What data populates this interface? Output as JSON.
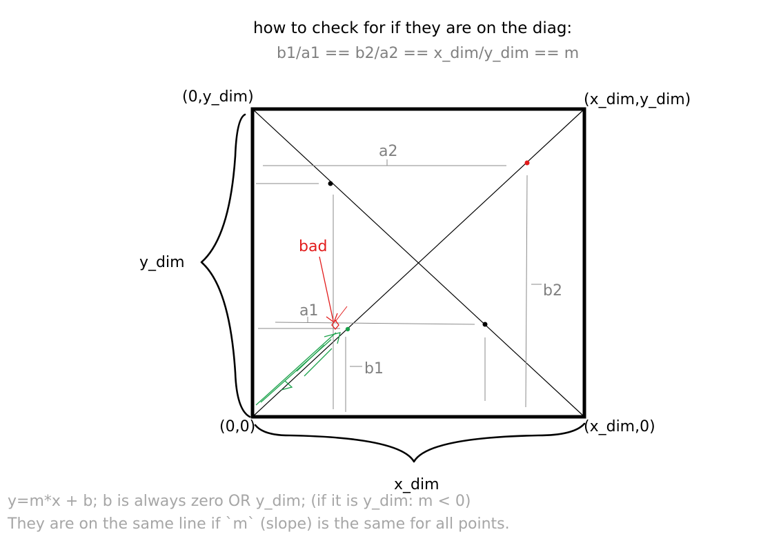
{
  "title": "how to check for if they are on the diag:",
  "formula": "b1/a1 == b2/a2 == x_dim/y_dim == m",
  "corners": {
    "top_left": "(0,y_dim)",
    "top_right": "(x_dim,y_dim)",
    "bottom_left": "(0,0)",
    "bottom_right": "(x_dim,0)"
  },
  "labels": {
    "a1": "a1",
    "a2": "a2",
    "b1": "b1",
    "b2": "b2",
    "bad": "bad",
    "y_dim": "y_dim",
    "x_dim": "x_dim"
  },
  "notes": {
    "line1": "y=m*x + b; b is always zero OR y_dim; (if it is y_dim: m < 0)",
    "line2": "They are on the same line if `m` (slope) is the same for all points."
  },
  "colors": {
    "ink": "#000000",
    "gray": "#808080",
    "light_gray": "#a6a6a6",
    "red": "#e21b1b",
    "green": "#1aa14a"
  }
}
